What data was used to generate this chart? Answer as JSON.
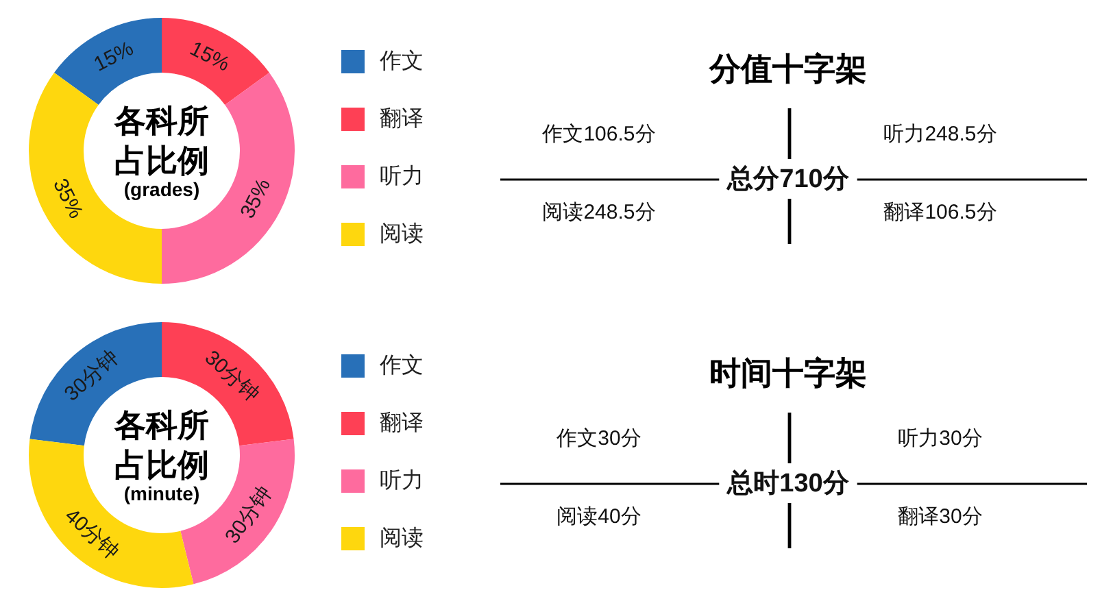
{
  "chart_data": [
    {
      "type": "donut",
      "title": "各科所占比例",
      "subtitle": "(grades)",
      "categories": [
        "作文",
        "翻译",
        "听力",
        "阅读"
      ],
      "values": [
        15,
        15,
        35,
        35
      ],
      "colors": [
        "#2870b8",
        "#fe4055",
        "#fe6b9e",
        "#fed70e"
      ],
      "value_labels": [
        "15%",
        "15%",
        "35%",
        "35%"
      ],
      "legend": "right"
    },
    {
      "type": "other",
      "title": "分值十字架",
      "annotations": [
        "作文106.5分",
        "听力248.5分",
        "总分710分",
        "阅读248.5分",
        "翻译106.5分"
      ]
    },
    {
      "type": "donut",
      "title": "各科所占比例",
      "subtitle": "(minute)",
      "categories": [
        "作文",
        "翻译",
        "听力",
        "阅读"
      ],
      "values": [
        30,
        30,
        30,
        40
      ],
      "colors": [
        "#2870b8",
        "#fe4055",
        "#fe6b9e",
        "#fed70e"
      ],
      "value_labels": [
        "30分钟",
        "30分钟",
        "30分钟",
        "40分钟"
      ],
      "legend": "right"
    },
    {
      "type": "other",
      "title": "时间十字架",
      "annotations": [
        "作文30分",
        "听力30分",
        "总时130分",
        "阅读40分",
        "翻译30分"
      ]
    }
  ]
}
